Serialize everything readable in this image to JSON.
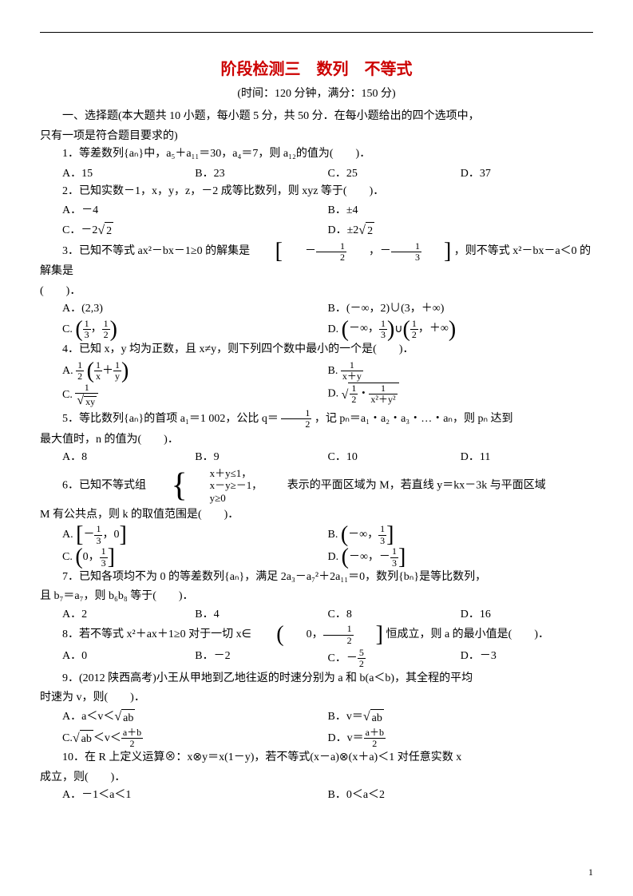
{
  "title": "阶段检测三　数列　不等式",
  "subtitle": "(时间：120 分钟，满分：150 分)",
  "section1_intro1": "一、选择题(本大题共 10 小题，每小题 5 分，共 50 分．在每小题给出的四个选项中，",
  "section1_intro2": "只有一项是符合题目要求的)",
  "q1_text": "1．等差数列{aₙ}中，a₅＋a₁₁＝30，a₄＝7，则 a₁₂的值为(　　)．",
  "q1_A": "A．15",
  "q1_B": "B．23",
  "q1_C": "C．25",
  "q1_D": "D．37",
  "q2_text": "2．已知实数－1，x，y，z，－2 成等比数列，则 xyz 等于(　　)．",
  "q2_A": "A．－4",
  "q2_B": "B．±4",
  "q2_C_pre": "C．－2",
  "q2_C_rad": "2",
  "q2_D_pre": "D．±2",
  "q2_D_rad": "2",
  "q3_pre": "3．已知不等式 ax²－bx－1≥0 的解集是",
  "q3_mid_n1": "1",
  "q3_mid_d1": "2",
  "q3_mid_n2": "1",
  "q3_mid_d2": "3",
  "q3_post": "，则不等式 x²－bx－a＜0 的解集是",
  "q3_tail": "(　　)．",
  "q3_A": "A．(2,3)",
  "q3_B": "B．(－∞，2)∪(3，＋∞)",
  "q3_C_pre": "C.",
  "q3_C_n1": "1",
  "q3_C_d1": "3",
  "q3_C_n2": "1",
  "q3_C_d2": "2",
  "q3_D_pre": "D.",
  "q3_D_n1": "1",
  "q3_D_d1": "3",
  "q3_D_n2": "1",
  "q3_D_d2": "2",
  "q4_text": "4．已知 x，y 均为正数，且 x≠y，则下列四个数中最小的一个是(　　)．",
  "q4_A_pre": "A.",
  "q4_A_num": "1",
  "q4_A_den": "2",
  "q4_A_inner_n": "1",
  "q4_A_inner_d1": "x",
  "q4_A_inner_d2": "y",
  "q4_B_pre": "B.",
  "q4_B_num": "1",
  "q4_B_den": "x＋y",
  "q4_C_pre": "C.",
  "q4_C_num": "1",
  "q4_C_rad": "xy",
  "q4_D_pre": "D.",
  "q4_D_num": "1",
  "q4_D_den": "2",
  "q4_D_rad": "x²＋y²",
  "q5_pre": "5．等比数列{aₙ}的首项 a₁＝1 002，公比 q＝",
  "q5_q_n": "1",
  "q5_q_d": "2",
  "q5_post": "，记 pₙ＝a₁・a₂・a₃・…・aₙ，则 pₙ 达到",
  "q5_line2": "最大值时，n 的值为(　　)．",
  "q5_A": "A．8",
  "q5_B": "B．9",
  "q5_C": "C．10",
  "q5_D": "D．11",
  "q6_pre": "6．已知不等式组",
  "q6_l1": "x＋y≤1，",
  "q6_l2": "x－y≥－1，",
  "q6_l3": "y≥0",
  "q6_post": "　　表示的平面区域为 M，若直线 y＝kx－3k 与平面区域",
  "q6_line2": "M 有公共点，则 k 的取值范围是(　　)．",
  "q6_A_pre": "A.",
  "q6_A_n": "1",
  "q6_A_d": "3",
  "q6_B_pre": "B.",
  "q6_B_n": "1",
  "q6_B_d": "3",
  "q6_C_pre": "C.",
  "q6_C_n": "1",
  "q6_C_d": "3",
  "q6_D_pre": "D.",
  "q6_D_n": "1",
  "q6_D_d": "3",
  "q7_l1": "7．已知各项均不为 0 的等差数列{aₙ}，满足 2a₃－a₇²＋2a₁₁＝0，数列{bₙ}是等比数列，",
  "q7_l2": "且 b₇＝a₇，则 b₆b₈ 等于(　　)．",
  "q7_A": "A．2",
  "q7_B": "B．4",
  "q7_C": "C．8",
  "q7_D": "D．16",
  "q8_pre": "8．若不等式 x²＋ax＋1≥0 对于一切 x∈",
  "q8_n": "1",
  "q8_d": "2",
  "q8_post": "恒成立，则 a 的最小值是(　　)．",
  "q8_A": "A．0",
  "q8_B": "B．－2",
  "q8_C_pre": "C．－",
  "q8_C_n": "5",
  "q8_C_d": "2",
  "q8_D": "D．－3",
  "q9_l1": "9．(2012 陕西高考)小王从甲地到乙地往返的时速分别为 a 和 b(a＜b)，其全程的平均",
  "q9_l2": "时速为 v，则(　　)．",
  "q9_A_pre": "A．a＜v＜",
  "q9_A_rad": "ab",
  "q9_B_pre": "B．v＝",
  "q9_B_rad": "ab",
  "q9_C_pre": "C.",
  "q9_C_rad": "ab",
  "q9_C_mid": "＜v＜",
  "q9_C_n": "a＋b",
  "q9_C_d": "2",
  "q9_D_pre": "D．v＝",
  "q9_D_n": "a＋b",
  "q9_D_d": "2",
  "q10_l1": "10．在 R 上定义运算⊗：x⊗y＝x(1－y)，若不等式(x－a)⊗(x＋a)＜1 对任意实数 x",
  "q10_l2": "成立，则(　　)．",
  "q10_A": "A．－1＜a＜1",
  "q10_B": "B．0＜a＜2",
  "page_num": "1"
}
